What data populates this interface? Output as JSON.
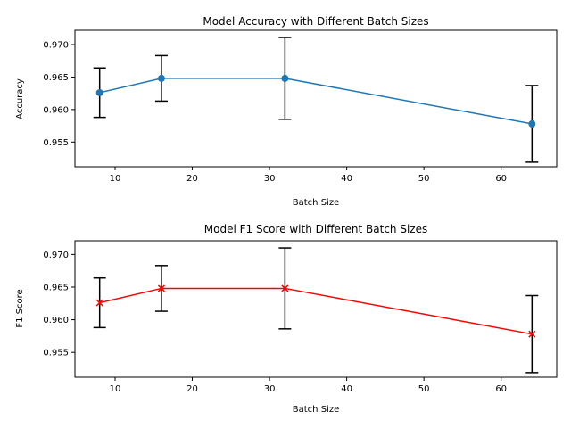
{
  "chart_data": [
    {
      "type": "line",
      "title": "Model Accuracy with Different Batch Sizes",
      "xlabel": "Batch Size",
      "ylabel": "Accuracy",
      "x": [
        8,
        16,
        32,
        64
      ],
      "values": [
        0.9626,
        0.9648,
        0.9648,
        0.9578
      ],
      "errors": [
        0.0038,
        0.0035,
        0.0063,
        0.0059
      ],
      "xlim": [
        4.8,
        67.2
      ],
      "ylim": [
        0.9512,
        0.9722
      ],
      "xticks": [
        10,
        20,
        30,
        40,
        50,
        60
      ],
      "yticks": [
        0.955,
        0.96,
        0.965,
        0.97
      ],
      "ytick_labels": [
        "0.955",
        "0.960",
        "0.965",
        "0.970"
      ],
      "line_color": "#1f77b4",
      "error_color": "#000000",
      "marker": "circle",
      "grid": false
    },
    {
      "type": "line",
      "title": "Model F1 Score with Different Batch Sizes",
      "xlabel": "Batch Size",
      "ylabel": "F1 Score",
      "x": [
        8,
        16,
        32,
        64
      ],
      "values": [
        0.9626,
        0.9648,
        0.9648,
        0.9578
      ],
      "errors": [
        0.0038,
        0.0035,
        0.0062,
        0.0059
      ],
      "xlim": [
        4.8,
        67.2
      ],
      "ylim": [
        0.9512,
        0.9721
      ],
      "xticks": [
        10,
        20,
        30,
        40,
        50,
        60
      ],
      "yticks": [
        0.955,
        0.96,
        0.965,
        0.97
      ],
      "ytick_labels": [
        "0.955",
        "0.960",
        "0.965",
        "0.970"
      ],
      "line_color": "#ff0000",
      "error_color": "#000000",
      "marker": "x",
      "grid": false
    }
  ]
}
